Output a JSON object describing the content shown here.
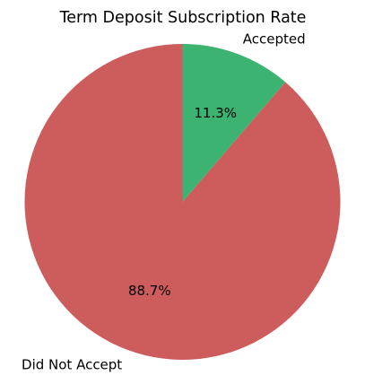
{
  "chart_data": {
    "type": "pie",
    "title": "Term Deposit Subscription Rate",
    "start_angle_deg": 90,
    "direction": "clockwise",
    "slices": [
      {
        "label": "Accepted",
        "value": 11.3,
        "value_label": "11.3%",
        "color": "#3cb371"
      },
      {
        "label": "Did Not Accept",
        "value": 88.7,
        "value_label": "88.7%",
        "color": "#cd5c5c"
      }
    ]
  }
}
